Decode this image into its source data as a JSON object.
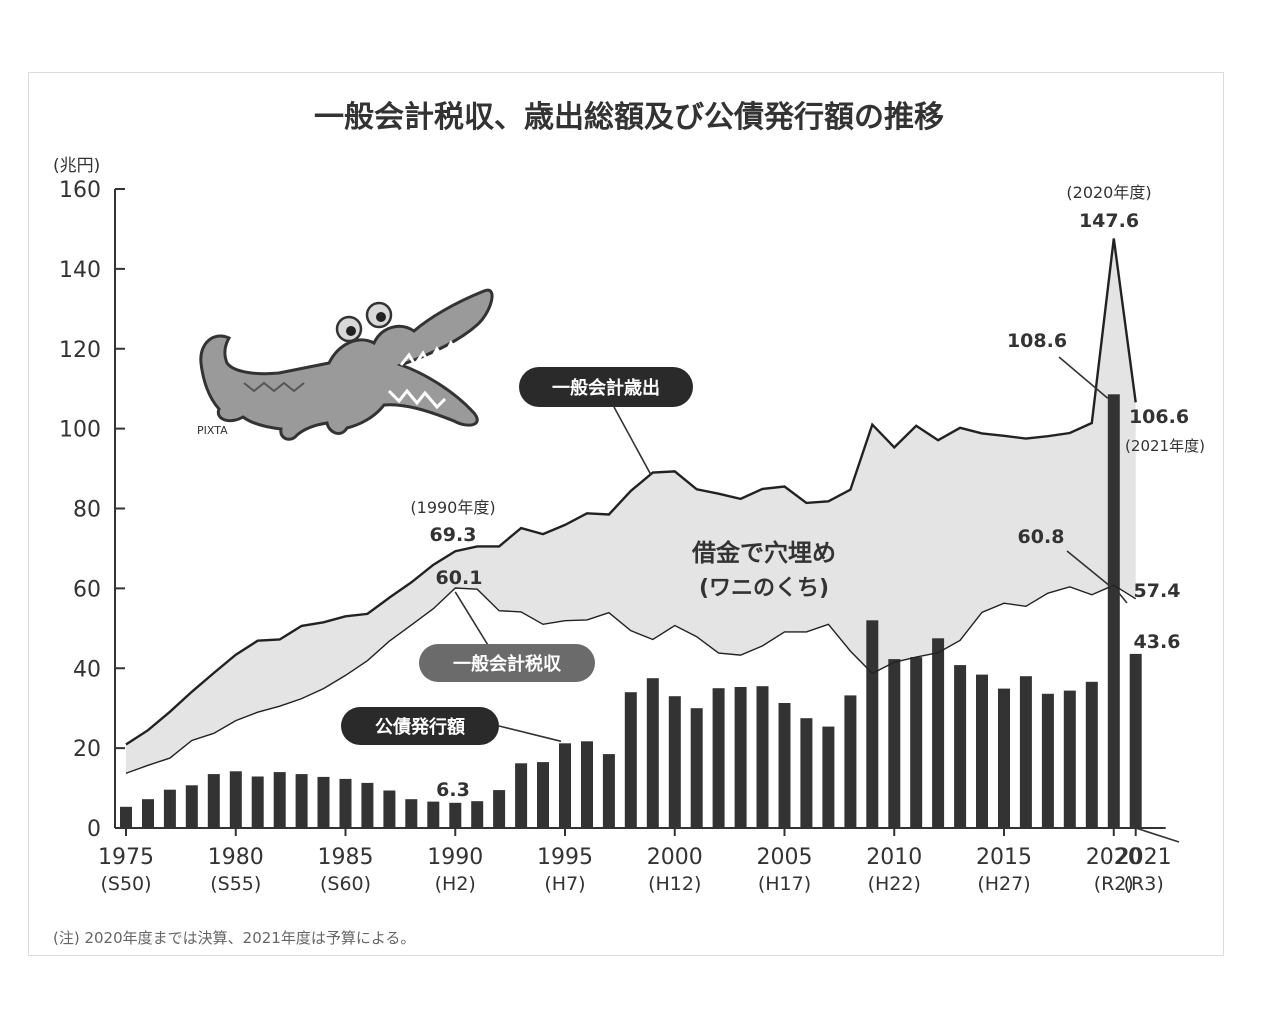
{
  "chart_data": {
    "type": "bar+area",
    "title": "一般会計税収、歳出総額及び公債発行額の推移",
    "ylabel": "(兆円)",
    "ylim": [
      0,
      160
    ],
    "yticks": [
      0,
      20,
      40,
      60,
      80,
      100,
      120,
      140,
      160
    ],
    "grid": false,
    "x": [
      1975,
      1976,
      1977,
      1978,
      1979,
      1980,
      1981,
      1982,
      1983,
      1984,
      1985,
      1986,
      1987,
      1988,
      1989,
      1990,
      1991,
      1992,
      1993,
      1994,
      1995,
      1996,
      1997,
      1998,
      1999,
      2000,
      2001,
      2002,
      2003,
      2004,
      2005,
      2006,
      2007,
      2008,
      2009,
      2010,
      2011,
      2012,
      2013,
      2014,
      2015,
      2016,
      2017,
      2018,
      2019,
      2020,
      2021
    ],
    "xticks": [
      {
        "year": 1975,
        "label": "1975",
        "era": "(S50)"
      },
      {
        "year": 1980,
        "label": "1980",
        "era": "(S55)"
      },
      {
        "year": 1985,
        "label": "1985",
        "era": "(S60)"
      },
      {
        "year": 1990,
        "label": "1990",
        "era": "(H2)"
      },
      {
        "year": 1995,
        "label": "1995",
        "era": "(H7)"
      },
      {
        "year": 2000,
        "label": "2000",
        "era": "(H12)"
      },
      {
        "year": 2005,
        "label": "2005",
        "era": "(H17)"
      },
      {
        "year": 2010,
        "label": "2010",
        "era": "(H22)"
      },
      {
        "year": 2015,
        "label": "2015",
        "era": "(H27)"
      },
      {
        "year": 2020,
        "label": "2020",
        "era": "(R2)"
      },
      {
        "year": 2021,
        "label": "2021",
        "era": "(R3)"
      }
    ],
    "series": [
      {
        "name": "一般会計歳出",
        "type": "line",
        "values": [
          20.9,
          24.5,
          29.1,
          34.1,
          38.8,
          43.4,
          46.9,
          47.2,
          50.6,
          51.5,
          53.0,
          53.6,
          57.7,
          61.5,
          65.9,
          69.3,
          70.5,
          70.5,
          75.1,
          73.6,
          75.9,
          78.8,
          78.5,
          84.4,
          89.0,
          89.3,
          84.8,
          83.7,
          82.4,
          84.9,
          85.5,
          81.4,
          81.8,
          84.7,
          101.0,
          95.3,
          100.7,
          97.1,
          100.2,
          98.8,
          98.2,
          97.5,
          98.1,
          98.9,
          101.4,
          147.6,
          106.6
        ]
      },
      {
        "name": "一般会計税収",
        "type": "line",
        "values": [
          13.7,
          15.7,
          17.5,
          21.9,
          23.7,
          26.9,
          29.0,
          30.5,
          32.4,
          34.9,
          38.2,
          41.9,
          46.8,
          50.8,
          54.9,
          60.1,
          59.8,
          54.4,
          54.1,
          51.0,
          51.9,
          52.1,
          53.9,
          49.4,
          47.2,
          50.7,
          47.9,
          43.8,
          43.3,
          45.6,
          49.1,
          49.1,
          51.0,
          44.3,
          38.7,
          41.5,
          42.8,
          43.9,
          47.0,
          54.0,
          56.3,
          55.5,
          58.8,
          60.4,
          58.4,
          60.8,
          57.4
        ]
      },
      {
        "name": "公債発行額",
        "type": "bar",
        "values": [
          5.3,
          7.2,
          9.6,
          10.7,
          13.5,
          14.2,
          12.9,
          14.0,
          13.5,
          12.8,
          12.3,
          11.3,
          9.4,
          7.2,
          6.6,
          6.3,
          6.7,
          9.5,
          16.2,
          16.5,
          21.2,
          21.7,
          18.5,
          34.0,
          37.5,
          33.0,
          30.0,
          35.0,
          35.3,
          35.5,
          31.3,
          27.5,
          25.4,
          33.2,
          52.0,
          42.3,
          42.8,
          47.5,
          40.8,
          38.4,
          34.9,
          38.0,
          33.6,
          34.4,
          36.6,
          108.6,
          43.6
        ]
      }
    ],
    "annotations": {
      "year_2020": "(2020年度)",
      "peak_2020": "147.6",
      "bond_2020": "108.6",
      "exp_2021": "106.6",
      "year_2021": "(2021年度)",
      "year_1990": "(1990年度)",
      "exp_1990": "69.3",
      "tax_1990": "60.1",
      "bond_1990": "6.3",
      "tax_2020": "60.8",
      "tax_2021": "57.4",
      "bond_2021": "43.6",
      "gap_title": "借金で穴埋め",
      "gap_sub": "(ワニのくち)"
    },
    "labels": {
      "expenditure": "一般会計歳出",
      "tax": "一般会計税収",
      "bonds": "公債発行額"
    },
    "note": "(注) 2020年度までは決算、2021年度は予算による。",
    "illustration_credit": "PIXTA"
  },
  "colors": {
    "bar": "#333333",
    "gap_fill": "#e4e4e4",
    "line": "#222222",
    "tax_label_bg": "#6b6b6b",
    "dark_label_bg": "#2a2a2a",
    "crocodile": "#9a9a9a"
  }
}
